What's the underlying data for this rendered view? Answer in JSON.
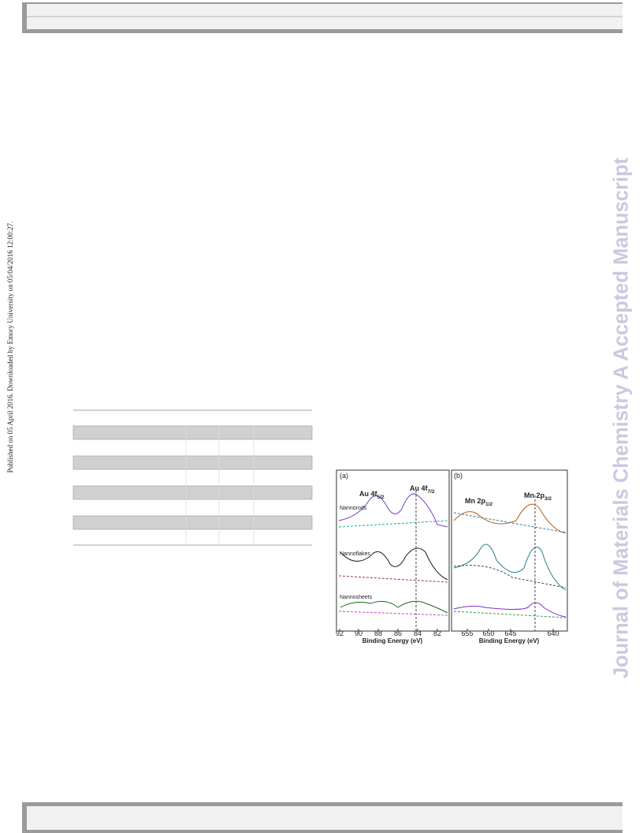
{
  "side_note": "Published on 05 April 2016. Downloaded by Emory University on 05/04/2016 12:00:27.",
  "watermark": "Journal of Materials Chemistry A Accepted Manuscript",
  "figure": {
    "panels": [
      {
        "label": "(a)",
        "peaks": [
          {
            "main": "Au 4f",
            "sub": "5/2"
          },
          {
            "main": "Au 4f",
            "sub": "7/2"
          }
        ],
        "samples": [
          "Nannorods",
          "Nannoflakes",
          "Nannosheets"
        ],
        "xticks": [
          "92",
          "90",
          "88",
          "86",
          "84",
          "82"
        ],
        "xlabel": "Binding Energy (eV)"
      },
      {
        "label": "(b)",
        "peaks": [
          {
            "main": "Mn 2p",
            "sub": "1/2"
          },
          {
            "main": "Mn 2p",
            "sub": "3/2"
          }
        ],
        "xticks": [
          "655",
          "650",
          "645",
          "640"
        ],
        "xlabel": "Binding Energy (eV)"
      }
    ]
  }
}
